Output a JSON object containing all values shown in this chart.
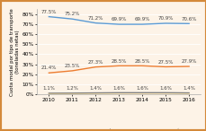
{
  "years": [
    2010,
    2011,
    2012,
    2013,
    2014,
    2015,
    2016
  ],
  "carretera": [
    77.5,
    75.2,
    71.2,
    69.9,
    69.9,
    70.9,
    70.6
  ],
  "maritimo": [
    21.4,
    23.5,
    27.3,
    28.5,
    28.5,
    27.5,
    27.9
  ],
  "ferrocarril": [
    1.1,
    1.2,
    1.4,
    1.6,
    1.6,
    1.6,
    1.4
  ],
  "aereo": [
    0.05,
    0.05,
    0.05,
    0.05,
    0.05,
    0.05,
    0.05
  ],
  "carretera_color": "#5b9bd5",
  "maritimo_color": "#ed7d31",
  "ferrocarril_color": "#808080",
  "aereo_color": "#ffc000",
  "background_color": "#fdf3e7",
  "border_color": "#d4893a",
  "ylabel": "Cuota modal por tipo de transporte\n(toneladas netas)",
  "ylim": [
    0,
    85
  ],
  "yticks": [
    0,
    10,
    20,
    30,
    40,
    50,
    60,
    70,
    80
  ],
  "legend_labels": [
    "Carretera",
    "Marítimo",
    "Ferrocarril",
    "Éreo"
  ],
  "label_fontsize": 4.0,
  "annotation_fontsize": 4.0,
  "tick_fontsize": 4.2,
  "legend_fontsize": 4.2
}
